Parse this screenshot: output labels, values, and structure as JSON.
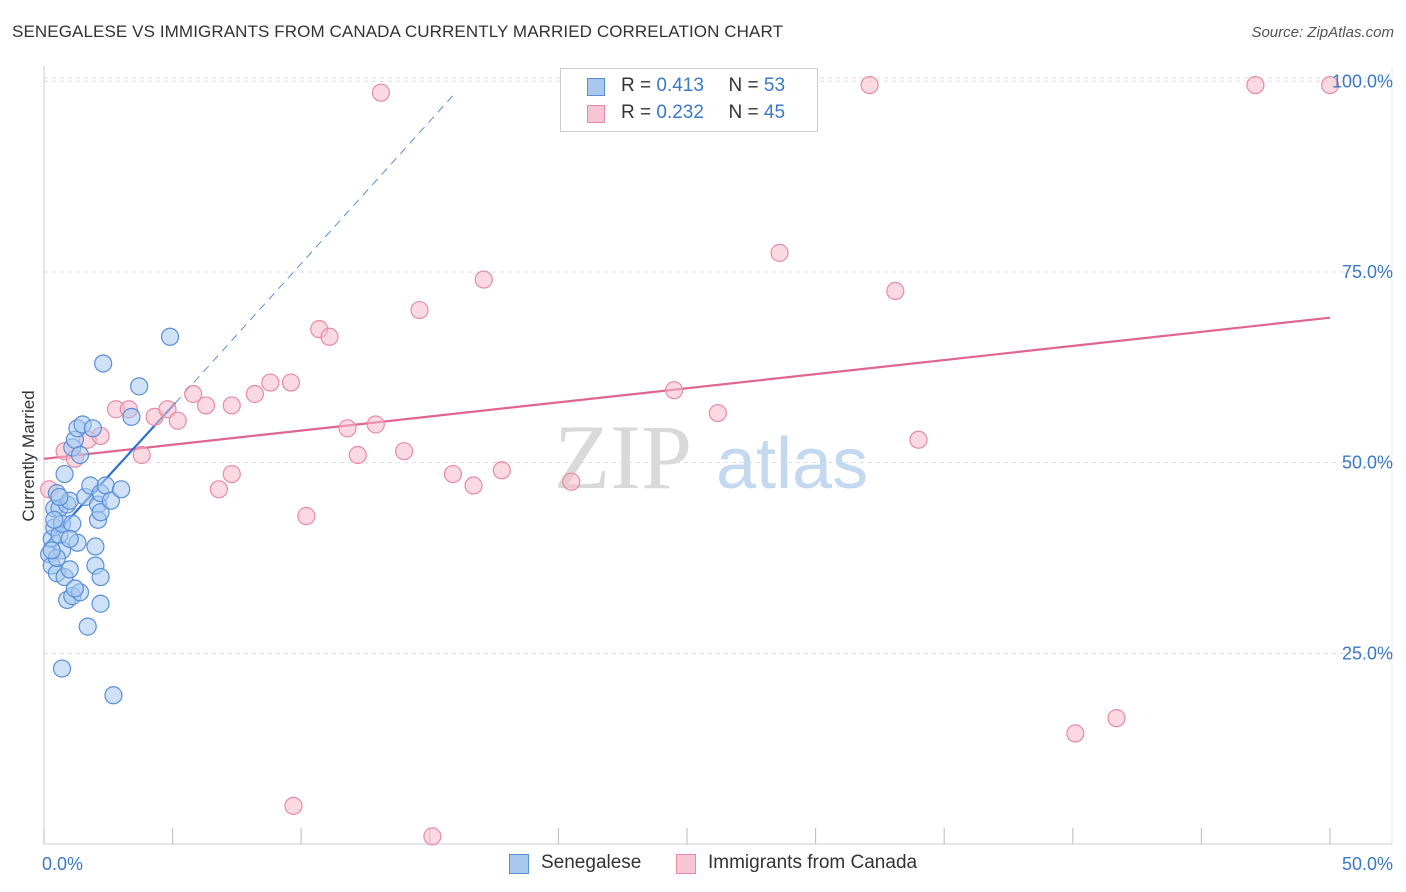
{
  "header": {
    "title": "SENEGALESE VS IMMIGRANTS FROM CANADA CURRENTLY MARRIED CORRELATION CHART",
    "source": "Source: ZipAtlas.com"
  },
  "legend": {
    "r_label": "R =",
    "n_label": "N =",
    "series": [
      {
        "name": "Senegalese",
        "r": "0.413",
        "n": "53"
      },
      {
        "name": "Immigrants from Canada",
        "r": "0.232",
        "n": "45"
      }
    ]
  },
  "watermark": {
    "zip": "ZIP",
    "atlas": "atlas"
  },
  "colors": {
    "blue_fill": "#a8c8f0",
    "blue_stroke": "#5a8fd8",
    "blue_line": "#2f6fd0",
    "pink_fill": "#f6b9cb",
    "pink_stroke": "#e88aa5",
    "pink_line": "#e0658f",
    "tick_text": "#3a78c9",
    "grid": "#dddddd"
  },
  "chart_data": {
    "type": "scatter",
    "title": "SENEGALESE VS IMMIGRANTS FROM CANADA CURRENTLY MARRIED CORRELATION CHART",
    "xlabel": "",
    "ylabel": "Currently Married",
    "xlim": [
      0,
      50
    ],
    "ylim": [
      0,
      102
    ],
    "x_tick_labels": [
      "0.0%",
      "50.0%"
    ],
    "y_ticks": [
      25,
      50,
      75,
      100
    ],
    "y_tick_labels": [
      "25.0%",
      "50.0%",
      "75.0%",
      "100.0%"
    ],
    "grid": true,
    "series": [
      {
        "name": "Senegalese",
        "color": "blue",
        "trend": {
          "x": [
            0,
            5.1
          ],
          "y": [
            39.0,
            57.8
          ],
          "dashed_extension_to": [
            16.0,
            98.5
          ]
        },
        "points": [
          [
            0.2,
            38.0
          ],
          [
            0.3,
            40.0
          ],
          [
            0.3,
            36.5
          ],
          [
            0.4,
            44.0
          ],
          [
            0.4,
            41.5
          ],
          [
            0.5,
            35.5
          ],
          [
            0.5,
            46.0
          ],
          [
            0.6,
            44.0
          ],
          [
            0.6,
            40.5
          ],
          [
            0.7,
            38.5
          ],
          [
            0.7,
            42.0
          ],
          [
            0.8,
            35.0
          ],
          [
            0.8,
            48.5
          ],
          [
            0.9,
            44.5
          ],
          [
            0.9,
            32.0
          ],
          [
            1.0,
            36.0
          ],
          [
            1.0,
            45.0
          ],
          [
            1.1,
            42.0
          ],
          [
            1.1,
            32.5
          ],
          [
            1.1,
            52.0
          ],
          [
            1.2,
            53.0
          ],
          [
            1.3,
            54.5
          ],
          [
            1.3,
            39.5
          ],
          [
            1.4,
            51.0
          ],
          [
            1.4,
            33.0
          ],
          [
            1.5,
            55.0
          ],
          [
            1.6,
            45.5
          ],
          [
            1.7,
            28.5
          ],
          [
            1.8,
            47.0
          ],
          [
            1.9,
            54.5
          ],
          [
            2.0,
            36.5
          ],
          [
            2.0,
            39.0
          ],
          [
            2.1,
            44.5
          ],
          [
            2.2,
            46.0
          ],
          [
            2.1,
            42.5
          ],
          [
            2.2,
            43.5
          ],
          [
            2.2,
            35.0
          ],
          [
            2.4,
            47.0
          ],
          [
            2.2,
            31.5
          ],
          [
            2.6,
            45.0
          ],
          [
            2.3,
            63.0
          ],
          [
            2.7,
            19.5
          ],
          [
            3.0,
            46.5
          ],
          [
            3.4,
            56.0
          ],
          [
            3.7,
            60.0
          ],
          [
            4.9,
            66.5
          ],
          [
            0.7,
            23.0
          ],
          [
            0.5,
            37.5
          ],
          [
            0.3,
            38.5
          ],
          [
            1.0,
            40.0
          ],
          [
            0.6,
            45.5
          ],
          [
            1.2,
            33.5
          ],
          [
            0.4,
            42.5
          ]
        ]
      },
      {
        "name": "Immigrants from Canada",
        "color": "pink",
        "trend": {
          "x": [
            0,
            50
          ],
          "y": [
            50.5,
            69.0
          ]
        },
        "points": [
          [
            0.2,
            46.5
          ],
          [
            0.8,
            51.5
          ],
          [
            1.2,
            50.5
          ],
          [
            1.7,
            53.0
          ],
          [
            2.2,
            53.5
          ],
          [
            2.8,
            57.0
          ],
          [
            3.3,
            57.0
          ],
          [
            3.8,
            51.0
          ],
          [
            4.3,
            56.0
          ],
          [
            4.8,
            57.0
          ],
          [
            5.2,
            55.5
          ],
          [
            5.8,
            59.0
          ],
          [
            6.3,
            57.5
          ],
          [
            6.8,
            46.5
          ],
          [
            7.3,
            57.5
          ],
          [
            7.3,
            48.5
          ],
          [
            8.2,
            59.0
          ],
          [
            8.8,
            60.5
          ],
          [
            9.6,
            60.5
          ],
          [
            9.7,
            5.0
          ],
          [
            10.2,
            43.0
          ],
          [
            10.7,
            67.5
          ],
          [
            11.1,
            66.5
          ],
          [
            11.8,
            54.5
          ],
          [
            12.2,
            51.0
          ],
          [
            12.9,
            55.0
          ],
          [
            13.1,
            98.5
          ],
          [
            14.0,
            51.5
          ],
          [
            14.6,
            70.0
          ],
          [
            15.1,
            1.0
          ],
          [
            15.9,
            48.5
          ],
          [
            16.7,
            47.0
          ],
          [
            17.1,
            74.0
          ],
          [
            17.8,
            49.0
          ],
          [
            20.5,
            47.5
          ],
          [
            24.5,
            59.5
          ],
          [
            26.2,
            56.5
          ],
          [
            28.6,
            77.5
          ],
          [
            32.1,
            99.5
          ],
          [
            33.1,
            72.5
          ],
          [
            34.0,
            53.0
          ],
          [
            40.1,
            14.5
          ],
          [
            41.7,
            16.5
          ],
          [
            47.1,
            99.5
          ],
          [
            50.0,
            99.5
          ]
        ]
      }
    ]
  }
}
